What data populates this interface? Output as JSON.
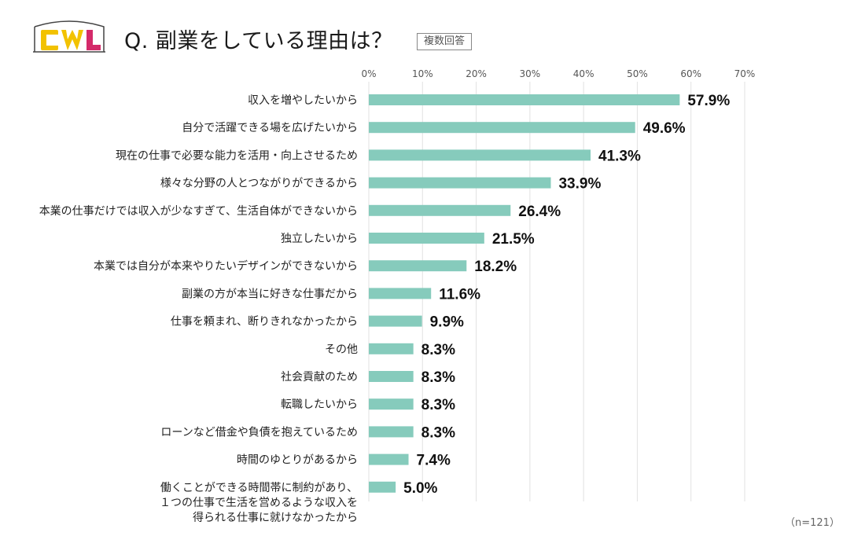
{
  "header": {
    "logo_text": "CWL",
    "title": "Q. 副業をしている理由は？",
    "badge": "複数回答",
    "sample_note": "（n=121）"
  },
  "colors": {
    "bar": "#86cbbc",
    "logo_yellow": "#f2c200",
    "logo_pink": "#d42a6a"
  },
  "chart_data": {
    "type": "bar",
    "orientation": "horizontal",
    "title": "Q. 副業をしている理由は？",
    "xlabel": "",
    "ylabel": "",
    "xlim": [
      0,
      70
    ],
    "x_ticks": [
      "0%",
      "10%",
      "20%",
      "30%",
      "40%",
      "50%",
      "60%",
      "70%"
    ],
    "grid": true,
    "categories": [
      [
        "収入を増やしたいから"
      ],
      [
        "自分で活躍できる場を広げたいから"
      ],
      [
        "現在の仕事で必要な能力を活用・向上させるため"
      ],
      [
        "様々な分野の人とつながりができるから"
      ],
      [
        "本業の仕事だけでは収入が少なすぎて、生活自体ができないから"
      ],
      [
        "独立したいから"
      ],
      [
        "本業では自分が本来やりたいデザインができないから"
      ],
      [
        "副業の方が本当に好きな仕事だから"
      ],
      [
        "仕事を頼まれ、断りきれなかったから"
      ],
      [
        "その他"
      ],
      [
        "社会貢献のため"
      ],
      [
        "転職したいから"
      ],
      [
        "ローンなど借金や負債を抱えているため"
      ],
      [
        "時間のゆとりがあるから"
      ],
      [
        "働くことができる時間帯に制約があり、",
        "１つの仕事で生活を営めるような収入を",
        "得られる仕事に就けなかったから"
      ]
    ],
    "values": [
      57.9,
      49.6,
      41.3,
      33.9,
      26.4,
      21.5,
      18.2,
      11.6,
      9.9,
      8.3,
      8.3,
      8.3,
      8.3,
      7.4,
      5.0
    ],
    "value_labels": [
      "57.9%",
      "49.6%",
      "41.3%",
      "33.9%",
      "26.4%",
      "21.5%",
      "18.2%",
      "11.6%",
      "9.9%",
      "8.3%",
      "8.3%",
      "8.3%",
      "8.3%",
      "7.4%",
      "5.0%"
    ]
  }
}
